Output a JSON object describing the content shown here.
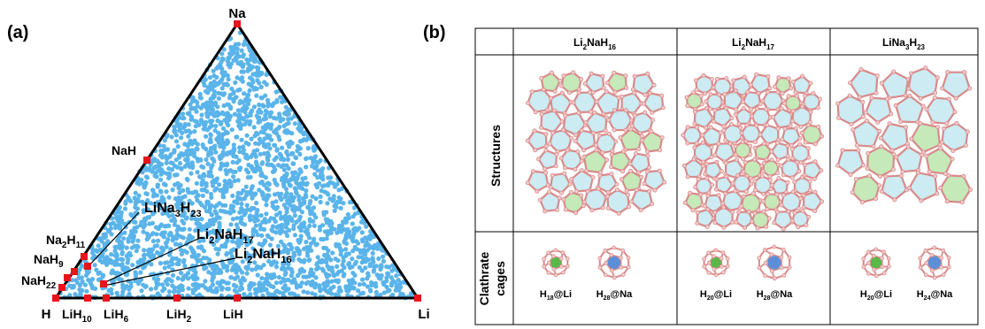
{
  "panel_a": {
    "label": "(a)",
    "vertices": {
      "top": "Na",
      "left": "H",
      "right": "Li"
    },
    "marked_labels": [
      {
        "id": "NaH",
        "parts": [
          [
            "NaH",
            false
          ]
        ]
      },
      {
        "id": "Na2H11",
        "parts": [
          [
            "Na",
            false
          ],
          [
            "2",
            true
          ],
          [
            "H",
            false
          ],
          [
            "11",
            true
          ]
        ]
      },
      {
        "id": "NaH9",
        "parts": [
          [
            "NaH",
            false
          ],
          [
            "9",
            true
          ]
        ]
      },
      {
        "id": "NaH22",
        "parts": [
          [
            "NaH",
            false
          ],
          [
            "22",
            true
          ]
        ]
      },
      {
        "id": "LiH10",
        "parts": [
          [
            "LiH",
            false
          ],
          [
            "10",
            true
          ]
        ]
      },
      {
        "id": "LiH6",
        "parts": [
          [
            "LiH",
            false
          ],
          [
            "6",
            true
          ]
        ]
      },
      {
        "id": "LiH2",
        "parts": [
          [
            "LiH",
            false
          ],
          [
            "2",
            true
          ]
        ]
      },
      {
        "id": "LiH",
        "parts": [
          [
            "LiH",
            false
          ]
        ]
      }
    ],
    "callouts": [
      {
        "id": "LiNa3H23",
        "parts": [
          [
            "LiNa",
            false
          ],
          [
            "3",
            true
          ],
          [
            "H",
            false
          ],
          [
            "23",
            true
          ]
        ]
      },
      {
        "id": "Li2NaH17",
        "parts": [
          [
            "Li",
            false
          ],
          [
            "2",
            true
          ],
          [
            "NaH",
            false
          ],
          [
            "17",
            true
          ]
        ]
      },
      {
        "id": "Li2NaH16",
        "parts": [
          [
            "Li",
            false
          ],
          [
            "2",
            true
          ],
          [
            "NaH",
            false
          ],
          [
            "16",
            true
          ]
        ]
      }
    ]
  },
  "panel_b": {
    "label": "(b)",
    "columns": [
      {
        "parts": [
          [
            "Li",
            false
          ],
          [
            "2",
            true
          ],
          [
            "NaH",
            false
          ],
          [
            "16",
            true
          ]
        ]
      },
      {
        "parts": [
          [
            "Li",
            false
          ],
          [
            "2",
            true
          ],
          [
            "NaH",
            false
          ],
          [
            "17",
            true
          ]
        ]
      },
      {
        "parts": [
          [
            "LiNa",
            false
          ],
          [
            "3",
            true
          ],
          [
            "H",
            false
          ],
          [
            "23",
            true
          ]
        ]
      }
    ],
    "rows": {
      "structures": "Structures",
      "cages_line1": "Clathrate",
      "cages_line2": "cages"
    },
    "cage_labels": [
      {
        "parts": [
          [
            "H",
            false
          ],
          [
            "18",
            true
          ],
          [
            "@Li",
            false
          ]
        ]
      },
      {
        "parts": [
          [
            "H",
            false
          ],
          [
            "28",
            true
          ],
          [
            "@Na",
            false
          ]
        ]
      },
      {
        "parts": [
          [
            "H",
            false
          ],
          [
            "20",
            true
          ],
          [
            "@Li",
            false
          ]
        ]
      },
      {
        "parts": [
          [
            "H",
            false
          ],
          [
            "28",
            true
          ],
          [
            "@Na",
            false
          ]
        ]
      },
      {
        "parts": [
          [
            "H",
            false
          ],
          [
            "20",
            true
          ],
          [
            "@Li",
            false
          ]
        ]
      },
      {
        "parts": [
          [
            "H",
            false
          ],
          [
            "24",
            true
          ],
          [
            "@Na",
            false
          ]
        ]
      }
    ]
  },
  "colors": {
    "triangle": "#000000",
    "points": "#5ab4ea",
    "markers": "#e8141b",
    "cage_edge": "#d88a8a",
    "cage_fill": "#bfe6f0",
    "cage_green": "#b6e3a8",
    "li_atom": "#58b848",
    "na_atom": "#5c8fd8"
  }
}
